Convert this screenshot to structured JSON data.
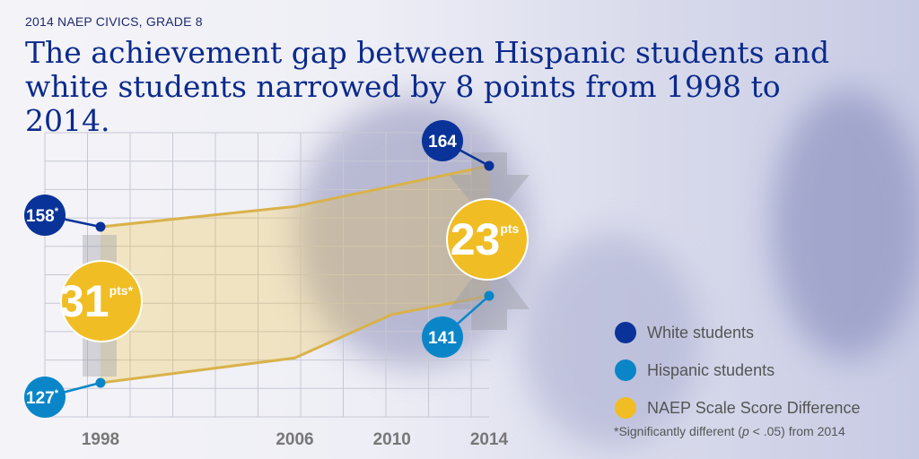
{
  "header": {
    "overline": "2014 NAEP CIVICS, GRADE 8",
    "title": "The achievement gap between Hispanic students and white students narrowed by 8 points from 1998 to 2014."
  },
  "chart_data": {
    "type": "line",
    "x": [
      1998,
      2006,
      2010,
      2014
    ],
    "tick_labels": [
      "1998",
      "2006",
      "2010",
      "2014"
    ],
    "series": [
      {
        "name": "White students",
        "values": [
          158,
          160,
          162,
          164
        ],
        "color": "#0a3399"
      },
      {
        "name": "Hispanic students",
        "values": [
          127,
          131,
          138,
          141
        ],
        "color": "#0a86c8"
      }
    ],
    "labels": {
      "white_1998": "158",
      "white_2014": "164",
      "hisp_1998": "127",
      "hisp_2014": "141",
      "asterisk": "*"
    },
    "gaps": [
      {
        "year": 1998,
        "value": "31",
        "unit": "pts",
        "asterisk": "*"
      },
      {
        "year": 2014,
        "value": "23",
        "unit": "pts"
      }
    ],
    "difference_color": "#f0bd24",
    "grid": true,
    "legend_position": "bottom-right",
    "legend": [
      "White students",
      "Hispanic students",
      "NAEP Scale Score Difference"
    ],
    "footnote_pre": "*Significantly different (",
    "footnote_p": "p",
    "footnote_post": " < .05) from 2014"
  }
}
